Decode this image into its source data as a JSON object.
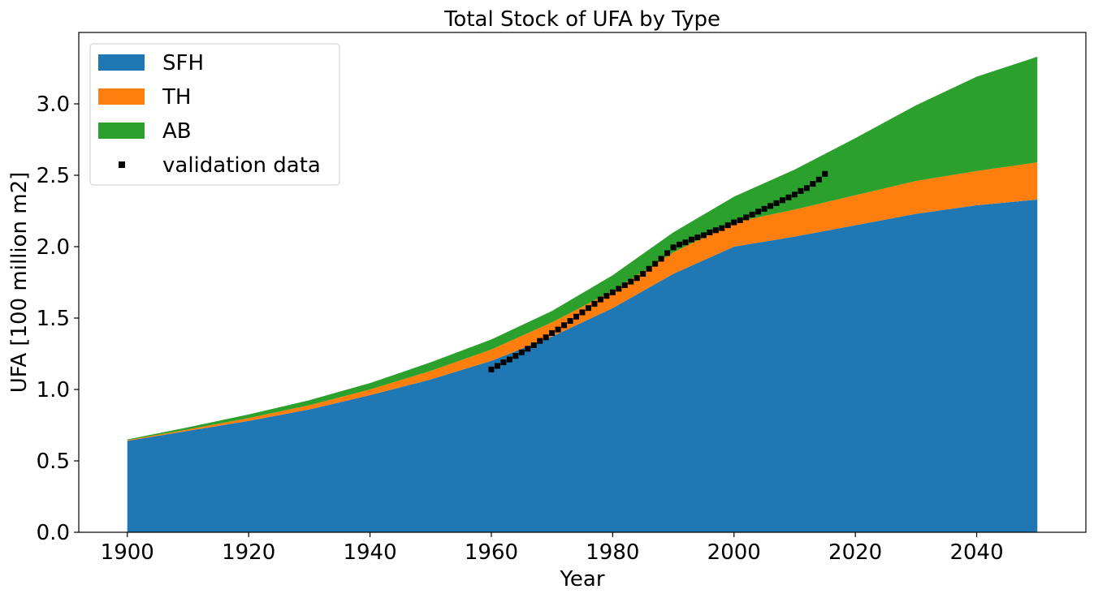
{
  "chart_data": {
    "type": "area",
    "stacked": true,
    "title": "Total Stock of UFA by Type",
    "xlabel": "Year",
    "ylabel": "UFA [100 million m2]",
    "xlim": [
      1892,
      2058
    ],
    "ylim": [
      0,
      3.5
    ],
    "xticks": [
      1900,
      1920,
      1940,
      1960,
      1980,
      2000,
      2020,
      2040
    ],
    "yticks": [
      0.0,
      0.5,
      1.0,
      1.5,
      2.0,
      2.5,
      3.0
    ],
    "ytick_labels": [
      "0.0",
      "0.5",
      "1.0",
      "1.5",
      "2.0",
      "2.5",
      "3.0"
    ],
    "grid": false,
    "legend_position": "top-left",
    "x": [
      1900,
      1910,
      1920,
      1930,
      1940,
      1950,
      1960,
      1970,
      1980,
      1990,
      2000,
      2010,
      2020,
      2030,
      2040,
      2050
    ],
    "series": [
      {
        "name": "SFH",
        "color": "#1f77b4",
        "values": [
          0.64,
          0.71,
          0.78,
          0.86,
          0.96,
          1.07,
          1.2,
          1.37,
          1.57,
          1.81,
          2.0,
          2.07,
          2.15,
          2.23,
          2.29,
          2.33
        ]
      },
      {
        "name": "TH",
        "color": "#ff7f0e",
        "values": [
          0.005,
          0.01,
          0.02,
          0.03,
          0.04,
          0.06,
          0.08,
          0.1,
          0.12,
          0.15,
          0.17,
          0.19,
          0.21,
          0.23,
          0.24,
          0.26
        ]
      },
      {
        "name": "AB",
        "color": "#2ca02c",
        "values": [
          0.005,
          0.015,
          0.025,
          0.035,
          0.045,
          0.06,
          0.07,
          0.08,
          0.11,
          0.14,
          0.18,
          0.28,
          0.4,
          0.53,
          0.66,
          0.74
        ]
      }
    ],
    "validation": {
      "name": "validation data",
      "color": "#000000",
      "x": [
        1960,
        1961,
        1962,
        1963,
        1964,
        1965,
        1966,
        1967,
        1968,
        1969,
        1970,
        1971,
        1972,
        1973,
        1974,
        1975,
        1976,
        1977,
        1978,
        1979,
        1980,
        1981,
        1982,
        1983,
        1984,
        1985,
        1986,
        1987,
        1988,
        1989,
        1990,
        1991,
        1992,
        1993,
        1994,
        1995,
        1996,
        1997,
        1998,
        1999,
        2000,
        2001,
        2002,
        2003,
        2004,
        2005,
        2006,
        2007,
        2008,
        2009,
        2010,
        2011,
        2012,
        2013,
        2014,
        2015
      ],
      "y": [
        1.14,
        1.165,
        1.19,
        1.21,
        1.235,
        1.26,
        1.285,
        1.31,
        1.34,
        1.365,
        1.395,
        1.42,
        1.45,
        1.48,
        1.51,
        1.54,
        1.57,
        1.6,
        1.63,
        1.655,
        1.68,
        1.705,
        1.73,
        1.755,
        1.78,
        1.81,
        1.845,
        1.88,
        1.915,
        1.955,
        1.995,
        2.015,
        2.03,
        2.05,
        2.065,
        2.08,
        2.1,
        2.115,
        2.13,
        2.15,
        2.17,
        2.185,
        2.205,
        2.225,
        2.245,
        2.265,
        2.285,
        2.305,
        2.325,
        2.345,
        2.365,
        2.39,
        2.41,
        2.44,
        2.47,
        2.51
      ]
    }
  }
}
